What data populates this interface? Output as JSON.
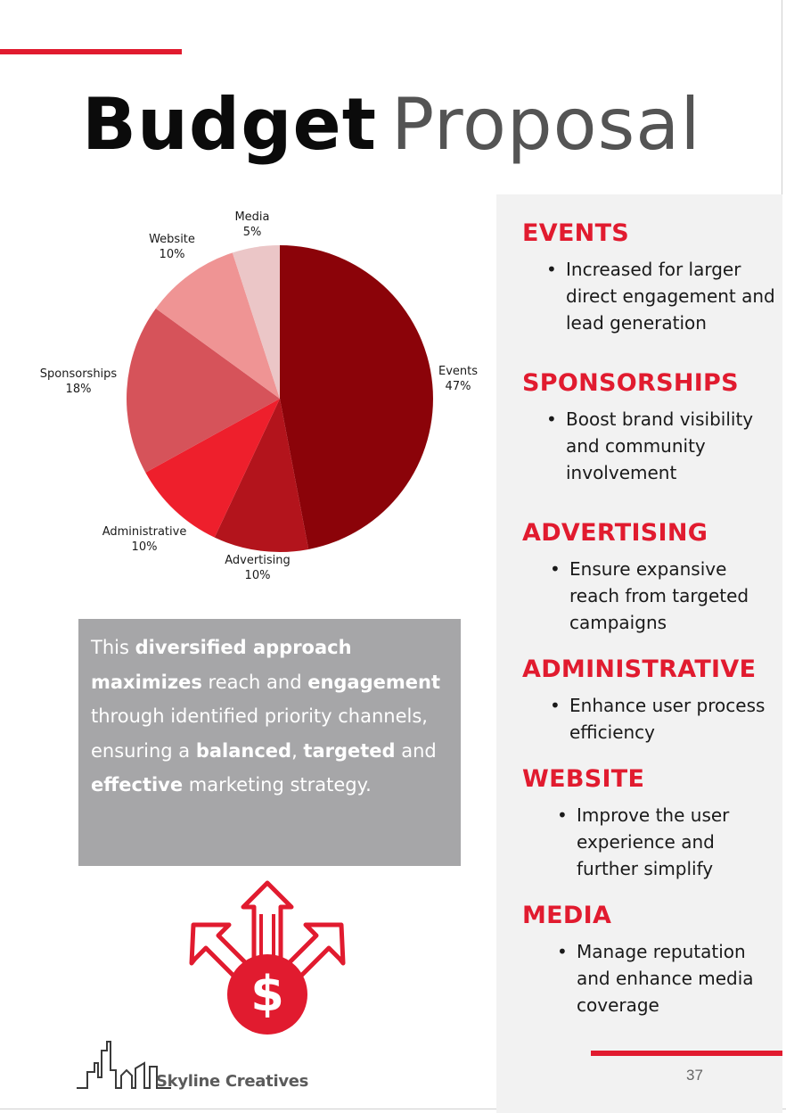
{
  "title": {
    "bold": "Budget",
    "light": "Proposal"
  },
  "chart_data": {
    "type": "pie",
    "categories": [
      "Events",
      "Advertising",
      "Administrative",
      "Sponsorships",
      "Website",
      "Media"
    ],
    "values": [
      47,
      10,
      10,
      18,
      10,
      5
    ],
    "value_labels": [
      "47%",
      "10%",
      "10%",
      "18%",
      "10%",
      "5%"
    ],
    "colors": [
      "#8b0309",
      "#b3141c",
      "#ee1f2c",
      "#d6535a",
      "#ef9494",
      "#ebc6c7"
    ]
  },
  "callout": {
    "parts": [
      {
        "text": "This ",
        "bold": false
      },
      {
        "text": "diversified approach maximizes",
        "bold": true
      },
      {
        "text": " reach and ",
        "bold": false
      },
      {
        "text": "engagement",
        "bold": true
      },
      {
        "text": " through identified priority channels, ensuring a ",
        "bold": false
      },
      {
        "text": "balanced",
        "bold": true
      },
      {
        "text": ", ",
        "bold": false
      },
      {
        "text": "targeted",
        "bold": true
      },
      {
        "text": " and ",
        "bold": false
      },
      {
        "text": "effective",
        "bold": true
      },
      {
        "text": " marketing strategy.",
        "bold": false
      }
    ]
  },
  "sections": [
    {
      "heading": "EVENTS",
      "bullet": "Increased for larger direct engagement and lead generation"
    },
    {
      "heading": "SPONSORSHIPS",
      "bullet": " Boost brand visibility and community involvement"
    },
    {
      "heading": "ADVERTISING",
      "bullet": "Ensure expansive reach from targeted campaigns"
    },
    {
      "heading": "ADMINISTRATIVE",
      "bullet": "Enhance user process efficiency"
    },
    {
      "heading": "WEBSITE",
      "bullet": "Improve the user experience and further simplify"
    },
    {
      "heading": "MEDIA",
      "bullet": "Manage reputation and enhance media coverage"
    }
  ],
  "footer": {
    "brand": "Skyline Creatives",
    "page_number": "37"
  },
  "colors": {
    "accent": "#e11b2f",
    "panel": "#f2f2f2",
    "callout": "#a6a6a8"
  },
  "icons": {
    "illustration": "money-growth-arrows-icon",
    "logo": "skyline-logo-icon"
  }
}
